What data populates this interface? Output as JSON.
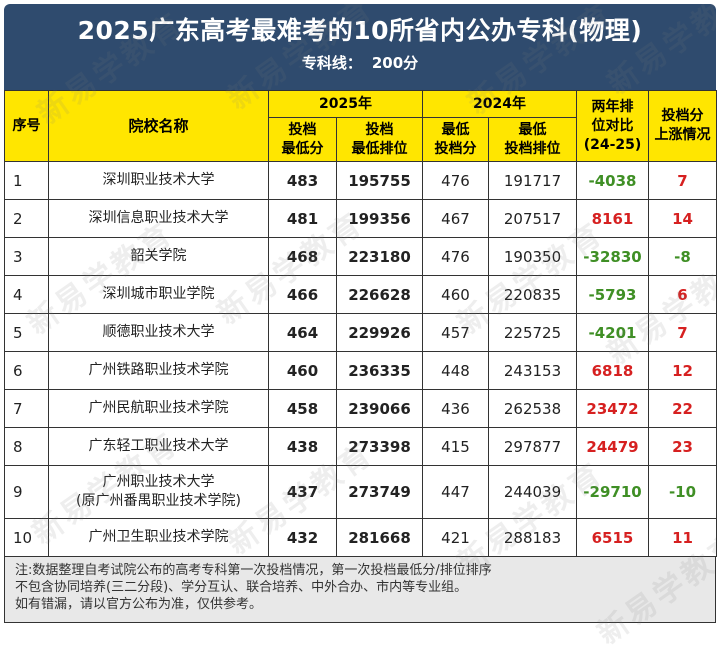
{
  "header": {
    "title": "2025广东高考最难考的10所省内公办专科(物理)",
    "subtitle_label": "专科线：",
    "subtitle_value": "200分"
  },
  "columns": {
    "index": "序号",
    "school": "院校名称",
    "year_2025": "2025年",
    "year_2024": "2024年",
    "col_2025_score": [
      "投档",
      "最低分"
    ],
    "col_2025_rank": [
      "投档",
      "最低排位"
    ],
    "col_2024_score": [
      "最低",
      "投档分"
    ],
    "col_2024_rank": [
      "最低",
      "投档排位"
    ],
    "rank_diff": [
      "两年排",
      "位对比",
      "(24-25)"
    ],
    "score_rise": [
      "投档分",
      "上涨情况"
    ]
  },
  "rows": [
    {
      "index": "1",
      "school": [
        "深圳职业技术大学"
      ],
      "score_2025": "483",
      "rank_2025": "195755",
      "score_2024": "476",
      "rank_2024": "191717",
      "rank_diff": "-4038",
      "score_rise": "7",
      "diff_sign": "neg",
      "rise_sign": "pos"
    },
    {
      "index": "2",
      "school": [
        "深圳信息职业技术大学"
      ],
      "score_2025": "481",
      "rank_2025": "199356",
      "score_2024": "467",
      "rank_2024": "207517",
      "rank_diff": "8161",
      "score_rise": "14",
      "diff_sign": "pos",
      "rise_sign": "pos"
    },
    {
      "index": "3",
      "school": [
        "韶关学院"
      ],
      "score_2025": "468",
      "rank_2025": "223180",
      "score_2024": "476",
      "rank_2024": "190350",
      "rank_diff": "-32830",
      "score_rise": "-8",
      "diff_sign": "neg",
      "rise_sign": "neg"
    },
    {
      "index": "4",
      "school": [
        "深圳城市职业学院"
      ],
      "score_2025": "466",
      "rank_2025": "226628",
      "score_2024": "460",
      "rank_2024": "220835",
      "rank_diff": "-5793",
      "score_rise": "6",
      "diff_sign": "neg",
      "rise_sign": "pos"
    },
    {
      "index": "5",
      "school": [
        "顺德职业技术大学"
      ],
      "score_2025": "464",
      "rank_2025": "229926",
      "score_2024": "457",
      "rank_2024": "225725",
      "rank_diff": "-4201",
      "score_rise": "7",
      "diff_sign": "neg",
      "rise_sign": "pos"
    },
    {
      "index": "6",
      "school": [
        "广州铁路职业技术学院"
      ],
      "score_2025": "460",
      "rank_2025": "236335",
      "score_2024": "448",
      "rank_2024": "243153",
      "rank_diff": "6818",
      "score_rise": "12",
      "diff_sign": "pos",
      "rise_sign": "pos"
    },
    {
      "index": "7",
      "school": [
        "广州民航职业技术学院"
      ],
      "score_2025": "458",
      "rank_2025": "239066",
      "score_2024": "436",
      "rank_2024": "262538",
      "rank_diff": "23472",
      "score_rise": "22",
      "diff_sign": "pos",
      "rise_sign": "pos"
    },
    {
      "index": "8",
      "school": [
        "广东轻工职业技术大学"
      ],
      "score_2025": "438",
      "rank_2025": "273398",
      "score_2024": "415",
      "rank_2024": "297877",
      "rank_diff": "24479",
      "score_rise": "23",
      "diff_sign": "pos",
      "rise_sign": "pos"
    },
    {
      "index": "9",
      "school": [
        "广州职业技术大学",
        "(原广州番禺职业技术学院)"
      ],
      "score_2025": "437",
      "rank_2025": "273749",
      "score_2024": "447",
      "rank_2024": "244039",
      "rank_diff": "-29710",
      "score_rise": "-10",
      "diff_sign": "neg",
      "rise_sign": "neg"
    },
    {
      "index": "10",
      "school": [
        "广州卫生职业技术学院"
      ],
      "score_2025": "432",
      "rank_2025": "281668",
      "score_2024": "421",
      "rank_2024": "288183",
      "rank_diff": "6515",
      "score_rise": "11",
      "diff_sign": "pos",
      "rise_sign": "pos"
    }
  ],
  "note": [
    "注:数据整理自考试院公布的高考专科第一次投档情况，第一次投档最低分/排位排序",
    "不包含协同培养(三二分段)、学分互认、联合培养、中外合办、市内等专业组。",
    "如有错漏，请以官方公布为准，仅供参考。"
  ],
  "watermark": "新易学教育",
  "colors": {
    "title_band": "#2f4b6e",
    "header_yellow": "#ffe600",
    "positive": "#d62020",
    "negative": "#3f8f25",
    "note_bg": "#e8e8e8"
  }
}
